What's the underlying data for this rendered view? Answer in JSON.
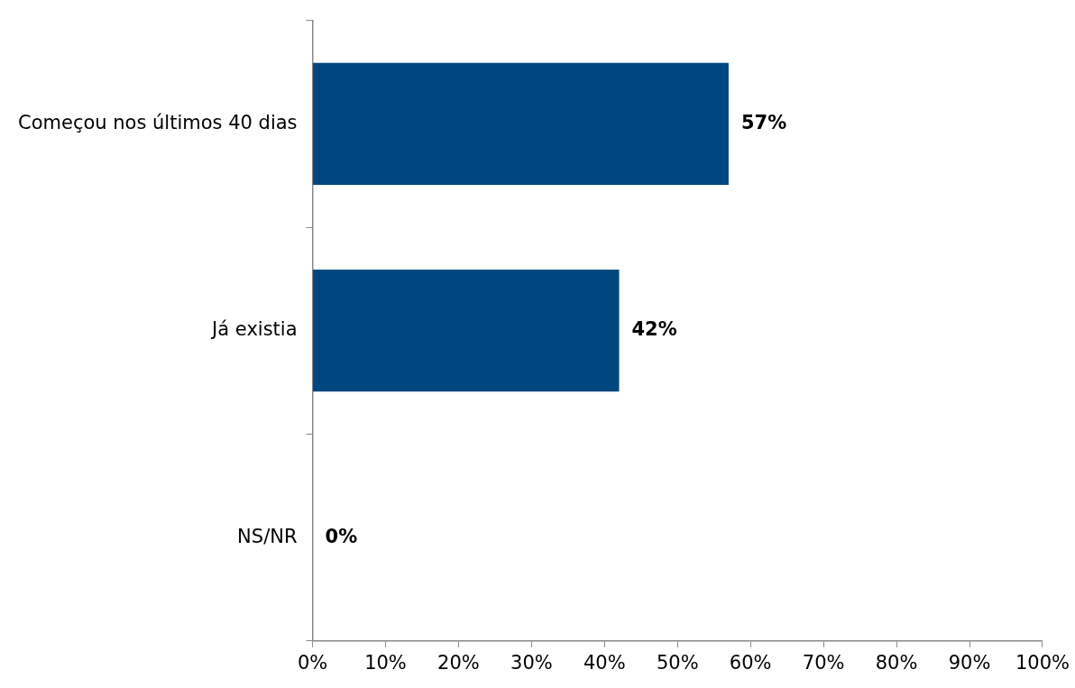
{
  "chart_data": {
    "type": "bar",
    "orientation": "horizontal",
    "categories": [
      "Começou nos últimos 40 dias",
      "Já existia",
      "NS/NR"
    ],
    "values": [
      57,
      42,
      0
    ],
    "color": "#00467f",
    "value_labels": [
      "57%",
      "42%",
      "0%"
    ],
    "xlim": [
      0,
      100
    ],
    "xticks": [
      {
        "value": 0,
        "label": "0%"
      },
      {
        "value": 10,
        "label": "10%"
      },
      {
        "value": 20,
        "label": "20%"
      },
      {
        "value": 30,
        "label": "30%"
      },
      {
        "value": 40,
        "label": "40%"
      },
      {
        "value": 50,
        "label": "50%"
      },
      {
        "value": 60,
        "label": "60%"
      },
      {
        "value": 70,
        "label": "70%"
      },
      {
        "value": 80,
        "label": "80%"
      },
      {
        "value": 90,
        "label": "90%"
      },
      {
        "value": 100,
        "label": "100%"
      }
    ],
    "grid": false,
    "legend": false
  }
}
